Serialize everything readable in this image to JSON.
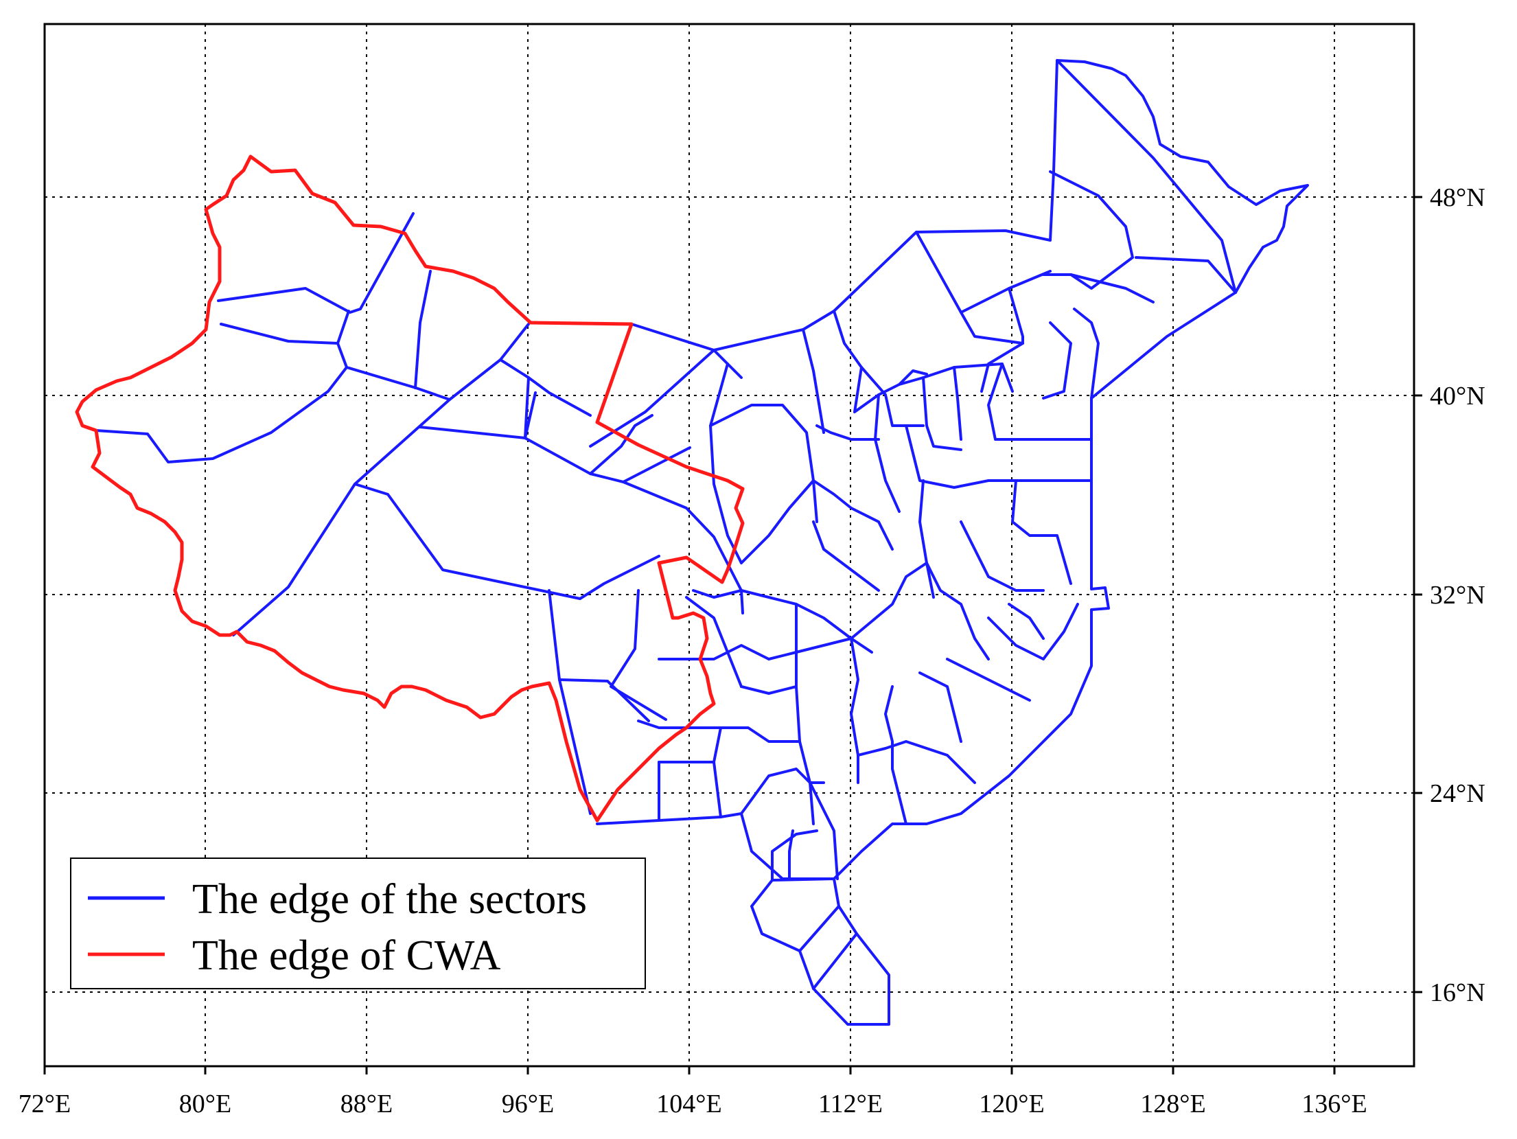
{
  "map": {
    "x_ticks": [
      "72°E",
      "80°E",
      "88°E",
      "96°E",
      "104°E",
      "112°E",
      "120°E",
      "128°E",
      "136°E"
    ],
    "y_ticks": [
      "48°N",
      "40°N",
      "32°N",
      "24°N",
      "16°N"
    ],
    "legend": [
      {
        "label": "The edge of the sectors",
        "color": "#1a1aff"
      },
      {
        "label": "The edge of CWA",
        "color": "#ff1a1a"
      }
    ]
  }
}
